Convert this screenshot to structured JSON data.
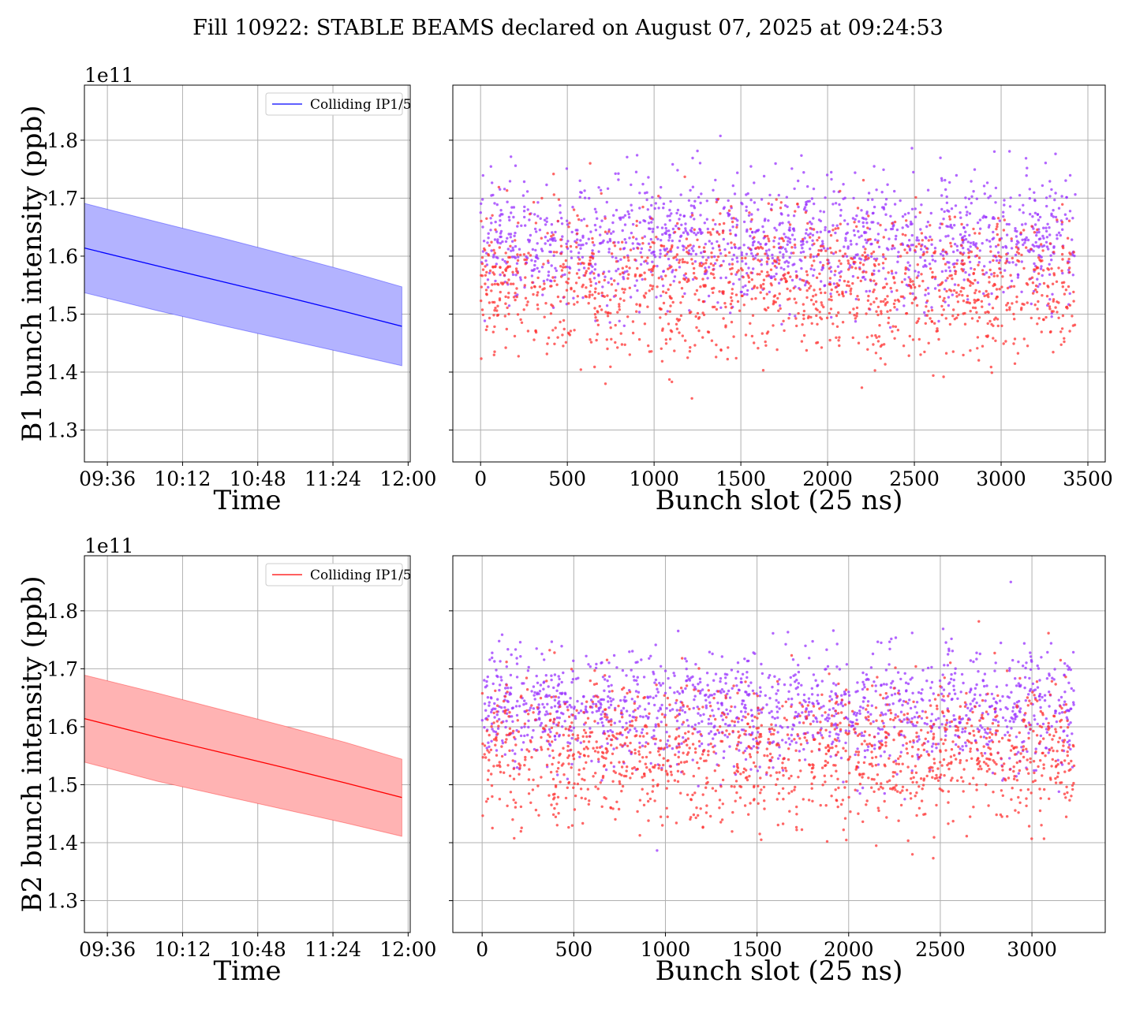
{
  "figure": {
    "title": "Fill 10922: STABLE BEAMS declared on August 07, 2025 at 09:24:53",
    "colors": {
      "b1": "#0000ff",
      "b2": "#ff0000",
      "scatter_a": "#ff3333",
      "scatter_b": "#9933ff",
      "grid": "#b0b0b0"
    }
  },
  "chart_data": [
    {
      "id": "b1_time",
      "type": "line",
      "title": "",
      "xlabel": "Time",
      "ylabel": "B1 bunch intensity (ppb)",
      "offset_label": "1e11",
      "x_ticks": [
        "09:36",
        "10:12",
        "10:48",
        "11:24",
        "12:00"
      ],
      "x_range": [
        "09:25",
        "12:01"
      ],
      "y_ticks": [
        1.3,
        1.4,
        1.5,
        1.6,
        1.7,
        1.8
      ],
      "ylim": [
        1.245,
        1.895
      ],
      "grid": true,
      "legend": {
        "position": "top-right",
        "entries": [
          "Colliding IP1/5"
        ]
      },
      "color": "#0000ff",
      "fill_color": "#b3b3ff",
      "series": [
        {
          "name": "Colliding IP1/5",
          "x": [
            "09:25",
            "10:00",
            "10:30",
            "11:00",
            "11:30",
            "11:57"
          ],
          "mean": [
            1.614,
            1.583,
            1.557,
            1.531,
            1.504,
            1.479
          ],
          "upper": [
            1.691,
            1.659,
            1.632,
            1.604,
            1.575,
            1.547
          ],
          "lower": [
            1.537,
            1.506,
            1.481,
            1.457,
            1.433,
            1.411
          ]
        }
      ]
    },
    {
      "id": "b1_slots",
      "type": "scatter",
      "title": "",
      "xlabel": "Bunch slot (25 ns)",
      "ylabel": "",
      "x_ticks": [
        0,
        500,
        1000,
        1500,
        2000,
        2500,
        3000,
        3500
      ],
      "xlim": [
        -160,
        3600
      ],
      "y_ticks": [
        1.3,
        1.4,
        1.5,
        1.6,
        1.7,
        1.8
      ],
      "ylim": [
        1.245,
        1.895
      ],
      "grid": true,
      "series": [
        {
          "name": "",
          "color": "#9933ff",
          "x_range": [
            0,
            3430
          ],
          "y_center": 1.635,
          "y_spread": 0.055,
          "points": 1400
        },
        {
          "name": "",
          "color": "#ff3333",
          "x_range": [
            0,
            3430
          ],
          "y_center": 1.56,
          "y_spread": 0.06,
          "points": 1400
        }
      ]
    },
    {
      "id": "b2_time",
      "type": "line",
      "title": "",
      "xlabel": "Time",
      "ylabel": "B2 bunch intensity (ppb)",
      "offset_label": "1e11",
      "x_ticks": [
        "09:36",
        "10:12",
        "10:48",
        "11:24",
        "12:00"
      ],
      "x_range": [
        "09:25",
        "12:01"
      ],
      "y_ticks": [
        1.3,
        1.4,
        1.5,
        1.6,
        1.7,
        1.8
      ],
      "ylim": [
        1.245,
        1.895
      ],
      "grid": true,
      "legend": {
        "position": "top-right",
        "entries": [
          "Colliding IP1/5"
        ]
      },
      "color": "#ff0000",
      "fill_color": "#ffb3b3",
      "series": [
        {
          "name": "Colliding IP1/5",
          "x": [
            "09:25",
            "10:00",
            "10:30",
            "11:00",
            "11:30",
            "11:57"
          ],
          "mean": [
            1.614,
            1.582,
            1.556,
            1.53,
            1.503,
            1.478
          ],
          "upper": [
            1.689,
            1.658,
            1.63,
            1.602,
            1.573,
            1.544
          ],
          "lower": [
            1.539,
            1.506,
            1.482,
            1.458,
            1.434,
            1.411
          ]
        }
      ]
    },
    {
      "id": "b2_slots",
      "type": "scatter",
      "title": "",
      "xlabel": "Bunch slot (25 ns)",
      "ylabel": "",
      "x_ticks": [
        0,
        500,
        1000,
        1500,
        2000,
        2500,
        3000
      ],
      "xlim": [
        -160,
        3400
      ],
      "y_ticks": [
        1.3,
        1.4,
        1.5,
        1.6,
        1.7,
        1.8
      ],
      "ylim": [
        1.245,
        1.895
      ],
      "grid": true,
      "series": [
        {
          "name": "",
          "color": "#9933ff",
          "x_range": [
            0,
            3230
          ],
          "y_center": 1.64,
          "y_spread": 0.05,
          "points": 1400
        },
        {
          "name": "",
          "color": "#ff3333",
          "x_range": [
            0,
            3230
          ],
          "y_center": 1.565,
          "y_spread": 0.06,
          "points": 1400
        }
      ]
    }
  ]
}
